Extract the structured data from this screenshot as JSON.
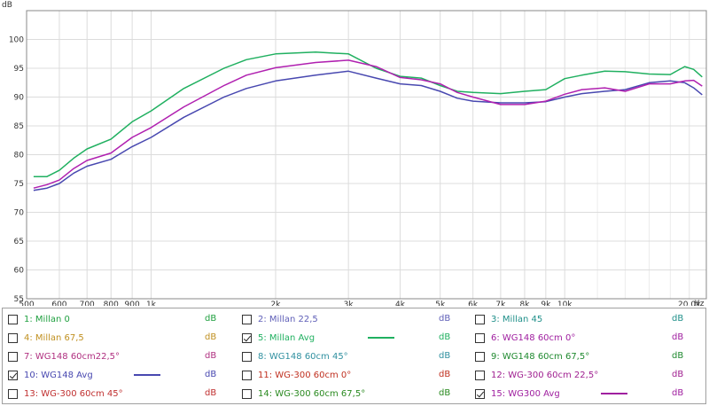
{
  "chart_data": {
    "type": "line",
    "unit": "dB",
    "x_unit": "Hz",
    "xscale": "log",
    "xlim": [
      500,
      22000
    ],
    "ylim": [
      55,
      105
    ],
    "grid": true,
    "x_ticks": [
      {
        "value": 500,
        "label": "500"
      },
      {
        "value": 600,
        "label": "600"
      },
      {
        "value": 700,
        "label": "700"
      },
      {
        "value": 800,
        "label": "800"
      },
      {
        "value": 900,
        "label": "900"
      },
      {
        "value": 1000,
        "label": "1k"
      },
      {
        "value": 2000,
        "label": "2k"
      },
      {
        "value": 3000,
        "label": "3k"
      },
      {
        "value": 4000,
        "label": "4k"
      },
      {
        "value": 5000,
        "label": "5k"
      },
      {
        "value": 6000,
        "label": "6k"
      },
      {
        "value": 7000,
        "label": "7k"
      },
      {
        "value": 8000,
        "label": "8k"
      },
      {
        "value": 9000,
        "label": "9k"
      },
      {
        "value": 10000,
        "label": "10k"
      },
      {
        "value": 20000,
        "label": "20,0k"
      }
    ],
    "y_ticks": [
      100,
      95,
      90,
      85,
      80,
      75,
      70,
      65,
      60,
      55
    ],
    "series": [
      {
        "name": "5: Millan Avg",
        "color": "#20b060",
        "points": [
          [
            520,
            76.2
          ],
          [
            560,
            76.2
          ],
          [
            600,
            77.3
          ],
          [
            650,
            79.4
          ],
          [
            700,
            81
          ],
          [
            800,
            82.7
          ],
          [
            900,
            85.7
          ],
          [
            1000,
            87.6
          ],
          [
            1200,
            91.5
          ],
          [
            1500,
            95
          ],
          [
            1700,
            96.5
          ],
          [
            2000,
            97.5
          ],
          [
            2500,
            97.8
          ],
          [
            3000,
            97.5
          ],
          [
            3500,
            95
          ],
          [
            4000,
            93.6
          ],
          [
            4500,
            93.3
          ],
          [
            5000,
            92
          ],
          [
            5500,
            91
          ],
          [
            6000,
            90.8
          ],
          [
            7000,
            90.6
          ],
          [
            8000,
            91
          ],
          [
            9000,
            91.3
          ],
          [
            10000,
            93.2
          ],
          [
            11000,
            93.8
          ],
          [
            12500,
            94.5
          ],
          [
            14000,
            94.4
          ],
          [
            16000,
            94
          ],
          [
            18000,
            93.9
          ],
          [
            19500,
            95.3
          ],
          [
            20500,
            94.8
          ],
          [
            21500,
            93.5
          ]
        ]
      },
      {
        "name": "10: WG148 Avg",
        "color": "#4848b0",
        "points": [
          [
            520,
            73.8
          ],
          [
            560,
            74.2
          ],
          [
            600,
            75
          ],
          [
            650,
            76.8
          ],
          [
            700,
            78
          ],
          [
            800,
            79.2
          ],
          [
            900,
            81.4
          ],
          [
            1000,
            83
          ],
          [
            1200,
            86.5
          ],
          [
            1500,
            90
          ],
          [
            1700,
            91.5
          ],
          [
            2000,
            92.8
          ],
          [
            2500,
            93.8
          ],
          [
            3000,
            94.5
          ],
          [
            3500,
            93.3
          ],
          [
            4000,
            92.3
          ],
          [
            4500,
            92
          ],
          [
            5000,
            91
          ],
          [
            5500,
            89.8
          ],
          [
            6000,
            89.3
          ],
          [
            7000,
            89
          ],
          [
            8000,
            89
          ],
          [
            9000,
            89.2
          ],
          [
            10000,
            90
          ],
          [
            11000,
            90.6
          ],
          [
            12500,
            91
          ],
          [
            14000,
            91.3
          ],
          [
            16000,
            92.5
          ],
          [
            18000,
            92.8
          ],
          [
            19500,
            92.5
          ],
          [
            20500,
            91.6
          ],
          [
            21500,
            90.4
          ]
        ]
      },
      {
        "name": "15: WG300 Avg",
        "color": "#b020b0",
        "points": [
          [
            520,
            74.2
          ],
          [
            560,
            74.8
          ],
          [
            600,
            75.6
          ],
          [
            650,
            77.6
          ],
          [
            700,
            79
          ],
          [
            800,
            80.3
          ],
          [
            900,
            83
          ],
          [
            1000,
            84.7
          ],
          [
            1200,
            88.3
          ],
          [
            1500,
            92
          ],
          [
            1700,
            93.8
          ],
          [
            2000,
            95.1
          ],
          [
            2500,
            96
          ],
          [
            3000,
            96.4
          ],
          [
            3500,
            95.3
          ],
          [
            4000,
            93.4
          ],
          [
            4500,
            93
          ],
          [
            5000,
            92.3
          ],
          [
            5500,
            90.8
          ],
          [
            6000,
            90
          ],
          [
            7000,
            88.7
          ],
          [
            8000,
            88.7
          ],
          [
            9000,
            89.3
          ],
          [
            10000,
            90.5
          ],
          [
            11000,
            91.3
          ],
          [
            12500,
            91.6
          ],
          [
            14000,
            91
          ],
          [
            16000,
            92.3
          ],
          [
            18000,
            92.3
          ],
          [
            19500,
            92.8
          ],
          [
            20500,
            92.9
          ],
          [
            21500,
            91.9
          ]
        ]
      }
    ]
  },
  "legend": {
    "items": [
      {
        "label": "1: Millan 0",
        "checked": false,
        "color": "#20a040",
        "unit_color": "#20a040"
      },
      {
        "label": "2: Millan 22,5",
        "checked": false,
        "color": "#6060b8",
        "unit_color": "#6060b8"
      },
      {
        "label": "3: Millan 45",
        "checked": false,
        "color": "#20908a",
        "unit_color": "#20908a"
      },
      {
        "label": "4: Millan 67,5",
        "checked": false,
        "color": "#c09020",
        "unit_color": "#c09020"
      },
      {
        "label": "5: Millan Avg",
        "checked": true,
        "color": "#20b060",
        "unit_color": "#20b060",
        "swatch": true
      },
      {
        "label": "6: WG148 60cm 0°",
        "checked": false,
        "color": "#a020a0",
        "unit_color": "#a020a0"
      },
      {
        "label": "7: WG148 60cm22,5°",
        "checked": false,
        "color": "#b03080",
        "unit_color": "#b03080"
      },
      {
        "label": "8: WG148 60cm 45°",
        "checked": false,
        "color": "#3090a0",
        "unit_color": "#3090a0"
      },
      {
        "label": "9: WG148 60cm 67,5°",
        "checked": false,
        "color": "#208a30",
        "unit_color": "#208a30"
      },
      {
        "label": "10: WG148 Avg",
        "checked": true,
        "color": "#4848b0",
        "unit_color": "#4848b0",
        "swatch": true
      },
      {
        "label": "11: WG-300 60cm 0°",
        "checked": false,
        "color": "#c03020",
        "unit_color": "#c03020"
      },
      {
        "label": "12: WG-300 60cm 22,5°",
        "checked": false,
        "color": "#a02090",
        "unit_color": "#a02090"
      },
      {
        "label": "13: WG-300 60cm 45°",
        "checked": false,
        "color": "#c03030",
        "unit_color": "#c03030"
      },
      {
        "label": "14: WG-300 60cm 67,5°",
        "checked": false,
        "color": "#2a8a20",
        "unit_color": "#2a8a20"
      },
      {
        "label": "15: WG300 Avg",
        "checked": true,
        "color": "#a020a0",
        "unit_color": "#a020a0",
        "swatch": true
      }
    ]
  }
}
